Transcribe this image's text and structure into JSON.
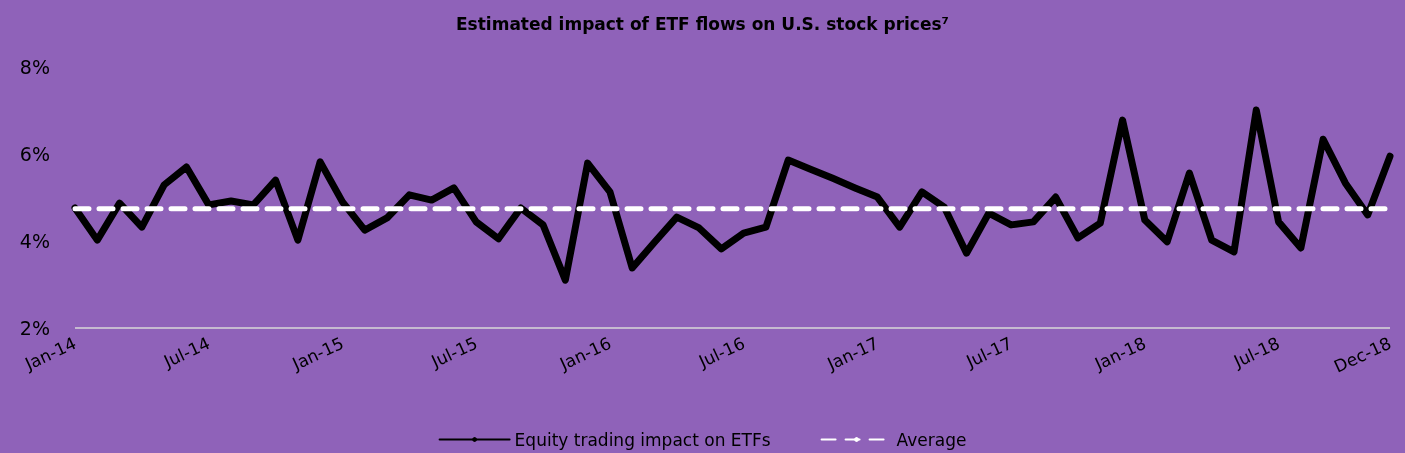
{
  "chart_data": {
    "type": "line",
    "title": "Estimated impact of ETF flows on U.S. stock prices⁷",
    "categories": [
      "Jan-14",
      null,
      null,
      null,
      null,
      null,
      "Jul-14",
      null,
      null,
      null,
      null,
      null,
      "Jan-15",
      null,
      null,
      null,
      null,
      null,
      "Jul-15",
      null,
      null,
      null,
      null,
      null,
      "Jan-16",
      null,
      null,
      null,
      null,
      null,
      "Jul-16",
      null,
      null,
      null,
      null,
      null,
      "Jan-17",
      null,
      null,
      null,
      null,
      null,
      "Jul-17",
      null,
      null,
      null,
      null,
      null,
      "Jan-18",
      null,
      null,
      null,
      null,
      null,
      "Jul-18",
      null,
      null,
      null,
      null,
      "Dec-18"
    ],
    "series": [
      {
        "name": "Equity trading impact on ETFs",
        "color": "#000000",
        "line_style": "solid",
        "values": [
          4.76,
          4.02,
          4.87,
          4.32,
          5.29,
          5.7,
          4.83,
          4.92,
          4.83,
          5.4,
          4.02,
          5.82,
          4.9,
          4.25,
          4.53,
          5.06,
          4.94,
          5.22,
          4.44,
          4.05,
          4.76,
          4.37,
          3.1,
          5.79,
          5.13,
          3.38,
          3.97,
          4.55,
          4.3,
          3.82,
          4.18,
          4.32,
          5.86,
          5.65,
          5.44,
          5.22,
          5.01,
          4.32,
          5.13,
          4.78,
          3.72,
          4.64,
          4.37,
          4.44,
          5.01,
          4.07,
          4.41,
          6.78,
          4.48,
          3.98,
          5.56,
          4.02,
          3.75,
          7.01,
          4.44,
          3.84,
          6.34,
          5.33,
          4.6,
          5.95
        ]
      },
      {
        "name": "Average",
        "color": "#ffffff",
        "line_style": "dashed",
        "values": [
          4.74,
          4.74,
          4.74,
          4.74,
          4.74,
          4.74,
          4.74,
          4.74,
          4.74,
          4.74,
          4.74,
          4.74,
          4.74,
          4.74,
          4.74,
          4.74,
          4.74,
          4.74,
          4.74,
          4.74,
          4.74,
          4.74,
          4.74,
          4.74,
          4.74,
          4.74,
          4.74,
          4.74,
          4.74,
          4.74,
          4.74,
          4.74,
          4.74,
          4.74,
          4.74,
          4.74,
          4.74,
          4.74,
          4.74,
          4.74,
          4.74,
          4.74,
          4.74,
          4.74,
          4.74,
          4.74,
          4.74,
          4.74,
          4.74,
          4.74,
          4.74,
          4.74,
          4.74,
          4.74,
          4.74,
          4.74,
          4.74,
          4.74,
          4.74,
          4.74
        ]
      }
    ],
    "ylim": [
      2,
      8
    ],
    "yticks": [
      {
        "value": 2,
        "label": "2%"
      },
      {
        "value": 4,
        "label": "4%"
      },
      {
        "value": 6,
        "label": "6%"
      },
      {
        "value": 8,
        "label": "8%"
      }
    ],
    "grid": false,
    "legend": "bottom",
    "marker": "none"
  }
}
